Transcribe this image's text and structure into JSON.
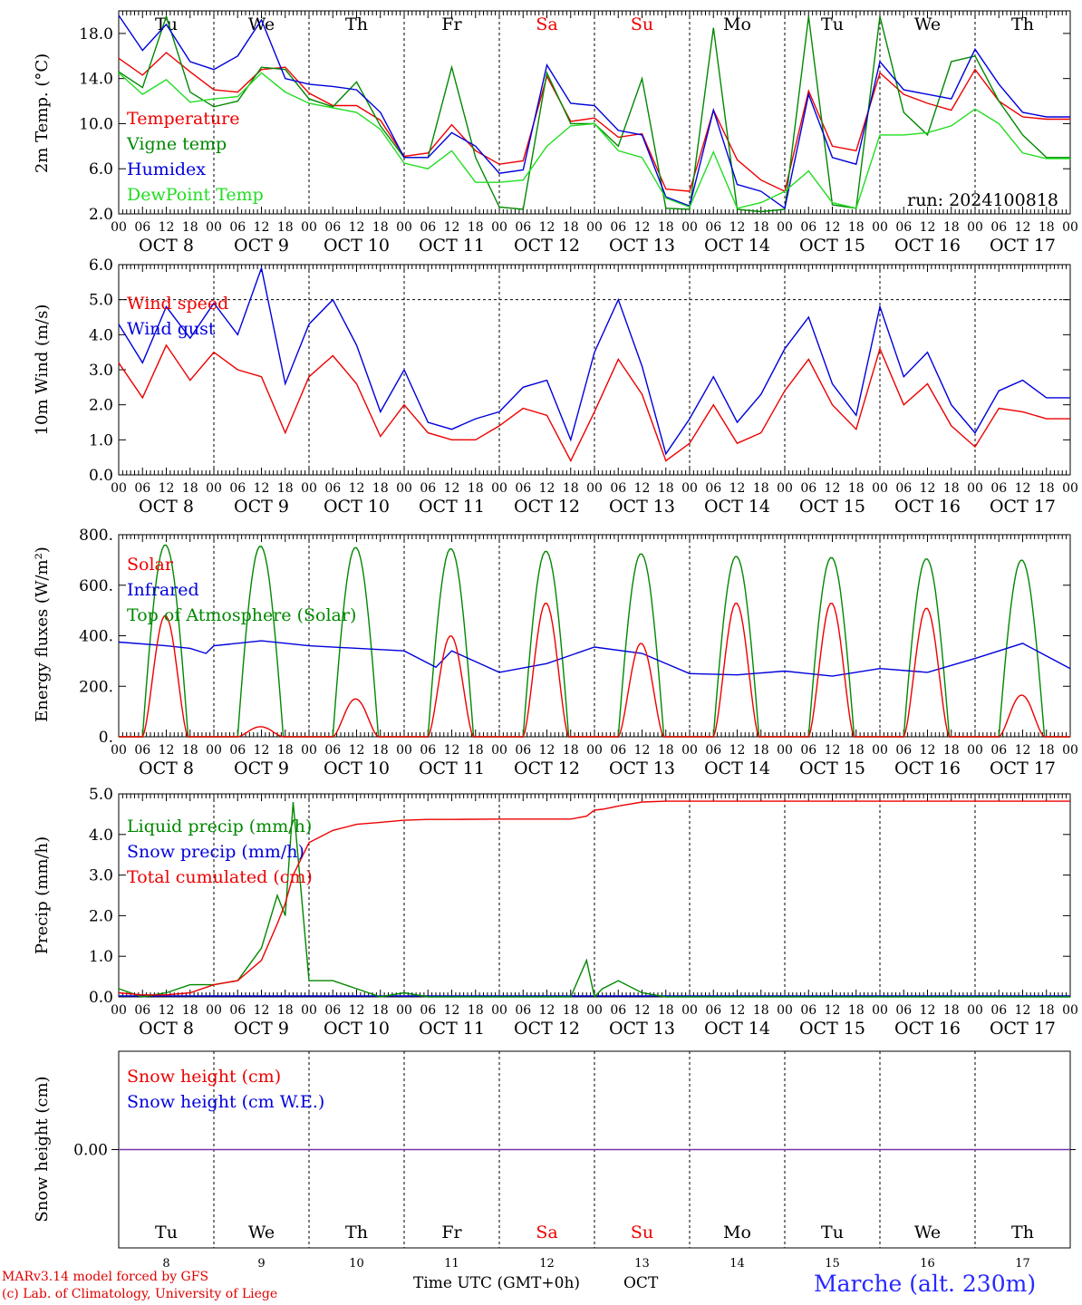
{
  "colors": {
    "red": "#ee0000",
    "green": "#008800",
    "blue": "#0000dd",
    "lightgreen": "#22dd22",
    "purple": "#7733aa",
    "black": "#000000",
    "weekend": "#ee0000"
  },
  "days": [
    {
      "abbr": "Tu",
      "num": "8",
      "weekend": false
    },
    {
      "abbr": "We",
      "num": "9",
      "weekend": false
    },
    {
      "abbr": "Th",
      "num": "10",
      "weekend": false
    },
    {
      "abbr": "Fr",
      "num": "11",
      "weekend": false
    },
    {
      "abbr": "Sa",
      "num": "12",
      "weekend": true
    },
    {
      "abbr": "Su",
      "num": "13",
      "weekend": true
    },
    {
      "abbr": "Mo",
      "num": "14",
      "weekend": false
    },
    {
      "abbr": "Tu",
      "num": "15",
      "weekend": false
    },
    {
      "abbr": "We",
      "num": "16",
      "weekend": false
    },
    {
      "abbr": "Th",
      "num": "17",
      "weekend": false
    }
  ],
  "date_labels": [
    "OCT  8",
    "OCT  9",
    "OCT 10",
    "OCT 11",
    "OCT 12",
    "OCT 13",
    "OCT 14",
    "OCT 15",
    "OCT 16",
    "OCT 17"
  ],
  "hour_labels": [
    "00",
    "06",
    "12",
    "18"
  ],
  "final_hour_label": "00",
  "chart_data": [
    {
      "type": "line",
      "ylabel": "2m Temp. (°C)",
      "ylim": [
        2,
        20
      ],
      "yticks": [
        "2.0",
        "6.0",
        "10.0",
        "14.0",
        "18.0"
      ],
      "ytick_values": [
        2,
        6,
        10,
        14,
        18
      ],
      "run_label": "run: 2024100818",
      "legend": [
        {
          "name": "Temperature",
          "color": "red"
        },
        {
          "name": "Vigne temp",
          "color": "green"
        },
        {
          "name": "Humidex",
          "color": "blue"
        },
        {
          "name": "DewPoint Temp",
          "color": "lightgreen"
        }
      ],
      "x_hours": [
        0,
        6,
        12,
        18,
        24,
        30,
        36,
        42,
        48,
        54,
        60,
        66,
        72,
        78,
        84,
        90,
        96,
        102,
        108,
        114,
        120,
        126,
        132,
        138,
        144,
        150,
        156,
        162,
        168,
        174,
        180,
        186,
        192,
        198,
        204,
        210,
        216,
        222,
        228,
        234,
        240
      ],
      "series": [
        {
          "name": "Temperature",
          "color": "red",
          "values": [
            15.8,
            14.3,
            16.3,
            14.6,
            13.0,
            12.8,
            14.8,
            15.0,
            12.7,
            11.6,
            11.6,
            10.3,
            7.1,
            7.4,
            9.9,
            7.6,
            6.4,
            6.7,
            14.2,
            10.2,
            10.5,
            8.8,
            9.1,
            4.2,
            4.0,
            11.2,
            6.8,
            5.0,
            4.0,
            12.9,
            8.0,
            7.6,
            14.5,
            12.6,
            11.8,
            11.2,
            14.8,
            12.0,
            10.6,
            10.4,
            10.4
          ]
        },
        {
          "name": "Vigne temp",
          "color": "green",
          "values": [
            14.6,
            13.2,
            19.5,
            12.8,
            11.5,
            12.0,
            15.0,
            14.8,
            12.2,
            11.5,
            13.7,
            9.8,
            7.0,
            7.0,
            15.0,
            7.0,
            2.6,
            2.4,
            14.5,
            10.0,
            10.0,
            8.0,
            14.0,
            2.5,
            2.4,
            18.5,
            2.4,
            2.2,
            2.4,
            19.5,
            2.8,
            2.5,
            19.5,
            11.0,
            9.0,
            15.5,
            16.0,
            12.0,
            9.0,
            7.0,
            7.0
          ]
        },
        {
          "name": "Humidex",
          "color": "blue",
          "values": [
            19.6,
            16.5,
            18.8,
            15.5,
            14.8,
            16.0,
            19.2,
            14.0,
            13.5,
            13.3,
            13.0,
            11.0,
            7.0,
            7.0,
            9.2,
            8.0,
            5.6,
            5.9,
            15.2,
            11.8,
            11.6,
            9.4,
            9.0,
            3.5,
            2.7,
            11.2,
            4.6,
            4.0,
            2.5,
            12.6,
            7.0,
            6.4,
            15.5,
            13.0,
            12.6,
            12.2,
            16.6,
            13.5,
            11.0,
            10.6,
            10.6
          ]
        },
        {
          "name": "DewPoint Temp",
          "color": "lightgreen",
          "values": [
            14.5,
            12.6,
            13.9,
            11.9,
            12.2,
            12.4,
            14.5,
            12.8,
            11.8,
            11.4,
            11.0,
            9.5,
            6.5,
            6.0,
            7.6,
            4.8,
            4.8,
            5.0,
            8.0,
            9.8,
            10.0,
            7.6,
            7.0,
            3.4,
            2.6,
            7.5,
            2.5,
            3.0,
            4.0,
            5.8,
            3.0,
            2.5,
            9.0,
            9.0,
            9.2,
            9.8,
            11.3,
            10.0,
            7.4,
            6.9,
            6.9
          ]
        }
      ]
    },
    {
      "type": "line",
      "ylabel": "10m Wind (m/s)",
      "ylim": [
        0,
        6
      ],
      "yticks": [
        "0.0",
        "1.0",
        "2.0",
        "3.0",
        "4.0",
        "5.0",
        "6.0"
      ],
      "ytick_values": [
        0,
        1,
        2,
        3,
        4,
        5,
        6
      ],
      "ref_line": 5,
      "legend": [
        {
          "name": "Wind speed",
          "color": "red"
        },
        {
          "name": "Wind gust",
          "color": "blue"
        }
      ],
      "x_hours": [
        0,
        6,
        12,
        18,
        24,
        30,
        36,
        42,
        48,
        54,
        60,
        66,
        72,
        78,
        84,
        90,
        96,
        102,
        108,
        114,
        120,
        126,
        132,
        138,
        144,
        150,
        156,
        162,
        168,
        174,
        180,
        186,
        192,
        198,
        204,
        210,
        216,
        222,
        228,
        234,
        240
      ],
      "series": [
        {
          "name": "Wind speed",
          "color": "red",
          "values": [
            3.2,
            2.2,
            3.7,
            2.7,
            3.5,
            3.0,
            2.8,
            1.2,
            2.8,
            3.4,
            2.6,
            1.1,
            2.0,
            1.2,
            1.0,
            1.0,
            1.4,
            1.9,
            1.7,
            0.4,
            1.8,
            3.3,
            2.3,
            0.4,
            0.9,
            2.0,
            0.9,
            1.2,
            2.4,
            3.3,
            2.0,
            1.3,
            3.6,
            2.0,
            2.6,
            1.4,
            0.8,
            1.9,
            1.8,
            1.6,
            1.6
          ]
        },
        {
          "name": "Wind gust",
          "color": "blue",
          "values": [
            4.3,
            3.2,
            4.8,
            3.9,
            4.9,
            4.0,
            5.9,
            2.6,
            4.3,
            5.0,
            3.7,
            1.8,
            3.0,
            1.5,
            1.3,
            1.6,
            1.8,
            2.5,
            2.7,
            1.0,
            3.5,
            5.0,
            3.1,
            0.6,
            1.6,
            2.8,
            1.5,
            2.3,
            3.6,
            4.5,
            2.6,
            1.7,
            4.8,
            2.8,
            3.5,
            2.0,
            1.2,
            2.4,
            2.7,
            2.2,
            2.2
          ]
        }
      ]
    },
    {
      "type": "line",
      "ylabel": "Energy fluxes (W/m²)",
      "ylim": [
        0,
        800
      ],
      "yticks": [
        "0.",
        "200.",
        "400.",
        "600.",
        "800."
      ],
      "ytick_values": [
        0,
        200,
        400,
        600,
        800
      ],
      "legend": [
        {
          "name": "Solar",
          "color": "red"
        },
        {
          "name": "Infrared",
          "color": "blue"
        },
        {
          "name": "Top of Atmosphere (Solar)",
          "color": "green"
        }
      ],
      "toa_peaks": [
        760,
        755,
        750,
        745,
        735,
        725,
        715,
        710,
        705,
        700
      ],
      "solar_peaks": [
        480,
        40,
        150,
        400,
        530,
        370,
        530,
        530,
        510,
        165
      ],
      "infrared": {
        "x_hours": [
          0,
          12,
          18,
          22,
          24,
          36,
          48,
          72,
          80,
          84,
          96,
          108,
          120,
          132,
          144,
          156,
          168,
          180,
          192,
          204,
          216,
          228,
          240
        ],
        "values": [
          375,
          360,
          350,
          330,
          360,
          380,
          360,
          340,
          275,
          340,
          255,
          290,
          355,
          330,
          250,
          245,
          260,
          240,
          270,
          255,
          310,
          370,
          270
        ]
      }
    },
    {
      "type": "line",
      "ylabel": "Precip (mm/h)",
      "ylim": [
        0,
        5
      ],
      "yticks": [
        "0.0",
        "1.0",
        "2.0",
        "3.0",
        "4.0",
        "5.0"
      ],
      "ytick_values": [
        0,
        1,
        2,
        3,
        4,
        5
      ],
      "legend": [
        {
          "name": "Liquid precip (mm/h)",
          "color": "green"
        },
        {
          "name": "Snow precip (mm/h)",
          "color": "blue"
        },
        {
          "name": "Total cumulated (cm)",
          "color": "red"
        }
      ],
      "x_hours": [
        0,
        6,
        12,
        18,
        24,
        30,
        36,
        40,
        42,
        44,
        48,
        54,
        60,
        66,
        72,
        78,
        84,
        96,
        108,
        114,
        118,
        120,
        122,
        126,
        132,
        138,
        144,
        156,
        168,
        180,
        192,
        204,
        216,
        228,
        240
      ],
      "series": [
        {
          "name": "Liquid precip (mm/h)",
          "color": "green",
          "values": [
            0.2,
            0.0,
            0.1,
            0.3,
            0.3,
            0.4,
            1.2,
            2.5,
            2.0,
            4.8,
            0.4,
            0.4,
            0.2,
            0.0,
            0.1,
            0.0,
            0.0,
            0.0,
            0.0,
            0.0,
            0.9,
            0.0,
            0.2,
            0.4,
            0.1,
            0.0,
            0.0,
            0.0,
            0.0,
            0.0,
            0.0,
            0.0,
            0.0,
            0.0,
            0.0
          ]
        },
        {
          "name": "Total cumulated (cm)",
          "color": "red",
          "values": [
            0.1,
            0.05,
            0.05,
            0.1,
            0.3,
            0.4,
            0.9,
            1.8,
            2.3,
            3.0,
            3.8,
            4.1,
            4.25,
            4.3,
            4.35,
            4.37,
            4.37,
            4.38,
            4.38,
            4.38,
            4.45,
            4.6,
            4.62,
            4.7,
            4.8,
            4.82,
            4.82,
            4.82,
            4.82,
            4.82,
            4.82,
            4.82,
            4.82,
            4.82,
            4.82
          ]
        }
      ]
    },
    {
      "type": "line",
      "ylabel": "Snow height (cm)",
      "yticks": [
        "0.00"
      ],
      "ytick_values": [
        0
      ],
      "legend": [
        {
          "name": "Snow height (cm)",
          "color": "red"
        },
        {
          "name": "Snow height (cm W.E.)",
          "color": "blue"
        }
      ],
      "x_hours": [
        0,
        240
      ],
      "series": [
        {
          "name": "Snow height (cm)",
          "color": "purple",
          "values": [
            0,
            0
          ]
        }
      ]
    }
  ],
  "footer": {
    "model_line": "MARv3.14 model forced by GFS",
    "copyright_line": "(c) Lab. of Climatology, University of Liege",
    "x_title": "Time UTC (GMT+0h)",
    "month": "OCT",
    "station": "Marche (alt. 230m)"
  }
}
